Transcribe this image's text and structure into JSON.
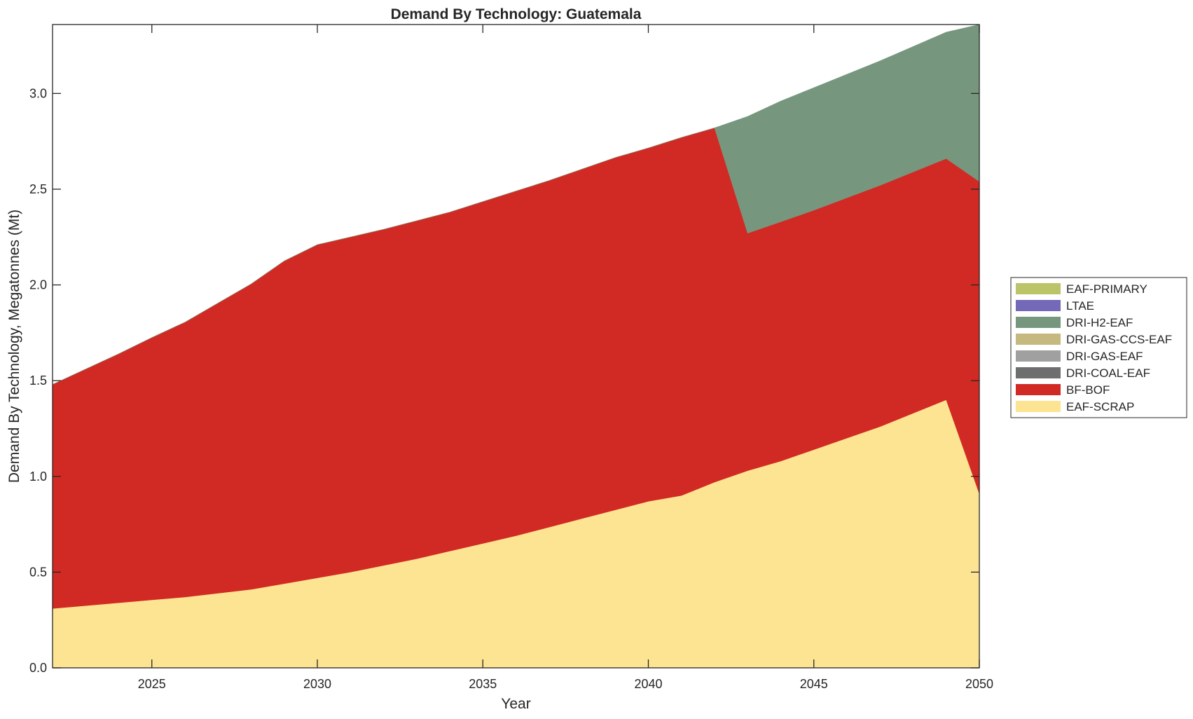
{
  "chart_data": {
    "type": "area",
    "stacked": true,
    "title": "Demand By Technology: Guatemala",
    "xlabel": "Year",
    "ylabel": "Demand By Technology, Megatonnes (Mt)",
    "xlim": [
      2022,
      2050
    ],
    "ylim": [
      0,
      3.36
    ],
    "xticks": [
      2025,
      2030,
      2035,
      2040,
      2045,
      2050
    ],
    "yticks": [
      0.0,
      0.5,
      1.0,
      1.5,
      2.0,
      2.5,
      3.0
    ],
    "ytick_labels": [
      "0.0",
      "0.5",
      "1.0",
      "1.5",
      "2.0",
      "2.5",
      "3.0"
    ],
    "grid": false,
    "legend_position": "right",
    "x": [
      2022,
      2023,
      2024,
      2025,
      2026,
      2027,
      2028,
      2029,
      2030,
      2031,
      2032,
      2033,
      2034,
      2035,
      2036,
      2037,
      2038,
      2039,
      2040,
      2041,
      2042,
      2043,
      2044,
      2045,
      2046,
      2047,
      2048,
      2049,
      2050
    ],
    "series": [
      {
        "name": "EAF-SCRAP",
        "color": "#fde492",
        "values": [
          0.31,
          0.325,
          0.34,
          0.355,
          0.37,
          0.39,
          0.41,
          0.44,
          0.47,
          0.5,
          0.535,
          0.57,
          0.61,
          0.65,
          0.69,
          0.735,
          0.78,
          0.825,
          0.87,
          0.9,
          0.97,
          1.03,
          1.08,
          1.14,
          1.2,
          1.26,
          1.33,
          1.4,
          0.91
        ]
      },
      {
        "name": "BF-BOF",
        "color": "#d12a24",
        "values": [
          1.17,
          1.235,
          1.3,
          1.37,
          1.435,
          1.515,
          1.595,
          1.685,
          1.74,
          1.75,
          1.755,
          1.765,
          1.77,
          1.785,
          1.8,
          1.81,
          1.825,
          1.84,
          1.845,
          1.87,
          1.85,
          1.24,
          1.25,
          1.25,
          1.255,
          1.26,
          1.26,
          1.26,
          1.63
        ]
      },
      {
        "name": "DRI-COAL-EAF",
        "color": "#6e6e6e",
        "values": [
          0,
          0,
          0,
          0,
          0,
          0,
          0,
          0,
          0,
          0,
          0,
          0,
          0,
          0,
          0,
          0,
          0,
          0,
          0,
          0,
          0,
          0,
          0,
          0,
          0,
          0,
          0,
          0,
          0
        ]
      },
      {
        "name": "DRI-GAS-EAF",
        "color": "#a0a0a0",
        "values": [
          0,
          0,
          0,
          0,
          0,
          0,
          0,
          0,
          0,
          0,
          0,
          0,
          0,
          0,
          0,
          0,
          0,
          0,
          0,
          0,
          0,
          0,
          0,
          0,
          0,
          0,
          0,
          0,
          0
        ]
      },
      {
        "name": "DRI-GAS-CCS-EAF",
        "color": "#c5b980",
        "values": [
          0,
          0,
          0,
          0,
          0,
          0,
          0,
          0,
          0,
          0,
          0,
          0,
          0,
          0,
          0,
          0,
          0,
          0,
          0,
          0,
          0,
          0,
          0,
          0,
          0,
          0,
          0,
          0,
          0
        ]
      },
      {
        "name": "DRI-H2-EAF",
        "color": "#76977e",
        "values": [
          0,
          0,
          0,
          0,
          0,
          0,
          0,
          0,
          0,
          0,
          0,
          0,
          0,
          0,
          0,
          0,
          0,
          0,
          0,
          0,
          0,
          0.61,
          0.63,
          0.64,
          0.645,
          0.65,
          0.655,
          0.66,
          0.82
        ]
      },
      {
        "name": "LTAE",
        "color": "#7369b8",
        "values": [
          0,
          0,
          0,
          0,
          0,
          0,
          0,
          0,
          0,
          0,
          0,
          0,
          0,
          0,
          0,
          0,
          0,
          0,
          0,
          0,
          0,
          0,
          0,
          0,
          0,
          0,
          0,
          0,
          0
        ]
      },
      {
        "name": "EAF-PRIMARY",
        "color": "#bcc46a",
        "values": [
          0,
          0,
          0,
          0,
          0,
          0,
          0,
          0,
          0,
          0,
          0,
          0,
          0,
          0,
          0,
          0,
          0,
          0,
          0,
          0,
          0,
          0,
          0,
          0,
          0,
          0,
          0,
          0,
          0
        ]
      }
    ],
    "legend_order": [
      "EAF-PRIMARY",
      "LTAE",
      "DRI-H2-EAF",
      "DRI-GAS-CCS-EAF",
      "DRI-GAS-EAF",
      "DRI-COAL-EAF",
      "BF-BOF",
      "EAF-SCRAP"
    ]
  }
}
